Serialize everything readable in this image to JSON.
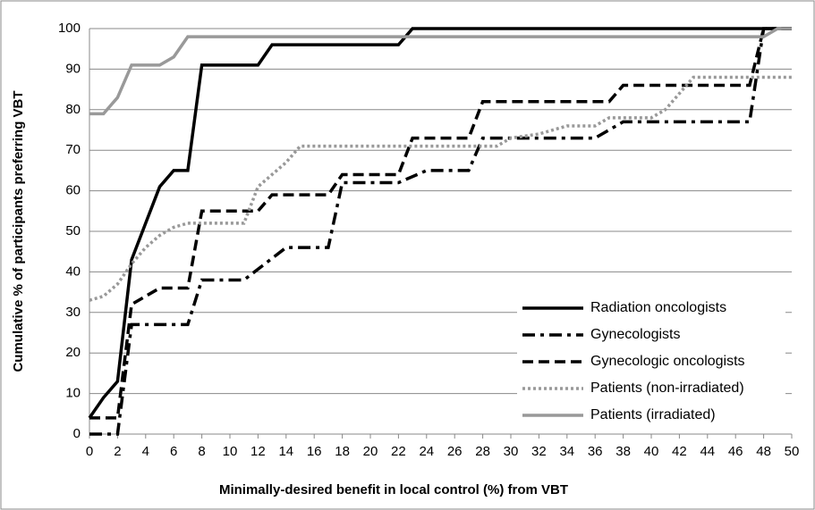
{
  "chart_data": {
    "type": "line",
    "x_label": "Minimally-desired benefit in local control (%) from VBT",
    "y_label": "Cumulative % of participants preferring VBT",
    "xlim": [
      0,
      50
    ],
    "ylim": [
      0,
      100
    ],
    "xticks": [
      0,
      2,
      4,
      6,
      8,
      10,
      12,
      14,
      16,
      18,
      20,
      22,
      24,
      26,
      28,
      30,
      32,
      34,
      36,
      38,
      40,
      42,
      44,
      46,
      48,
      50
    ],
    "yticks": [
      0,
      10,
      20,
      30,
      40,
      50,
      60,
      70,
      80,
      90,
      100
    ],
    "grid": true,
    "legend": "lower right",
    "series": [
      {
        "name": "Radiation oncologists",
        "color": "#000000",
        "dash": "solid",
        "x": [
          0,
          1,
          2,
          3,
          4,
          5,
          6,
          7,
          8,
          12,
          13,
          22,
          23,
          50
        ],
        "values": [
          4,
          9,
          13,
          43,
          52,
          61,
          65,
          65,
          91,
          91,
          96,
          96,
          100,
          100
        ]
      },
      {
        "name": "Gynecologists",
        "color": "#000000",
        "dash": "dash-dot",
        "x": [
          0,
          2,
          3,
          7,
          8,
          11,
          14,
          17,
          18,
          22,
          24,
          27,
          28,
          36,
          38,
          47,
          48,
          50
        ],
        "values": [
          0,
          0,
          27,
          27,
          38,
          38,
          46,
          46,
          62,
          62,
          65,
          65,
          73,
          73,
          77,
          77,
          100,
          100
        ]
      },
      {
        "name": "Gynecologic oncologists",
        "color": "#000000",
        "dash": "dashed",
        "x": [
          0,
          2,
          3,
          5,
          7,
          8,
          12,
          13,
          17,
          18,
          22,
          23,
          27,
          28,
          37,
          38,
          47,
          48,
          50
        ],
        "values": [
          4,
          4,
          32,
          36,
          36,
          55,
          55,
          59,
          59,
          64,
          64,
          73,
          73,
          82,
          82,
          86,
          86,
          100,
          100
        ]
      },
      {
        "name": "Patients (non-irradiated)",
        "color": "#999999",
        "dash": "dotted",
        "x": [
          0,
          1,
          2,
          3,
          4,
          5,
          6,
          7,
          11,
          12,
          14,
          15,
          29,
          30,
          32,
          34,
          36,
          37,
          40,
          41,
          43,
          50
        ],
        "values": [
          33,
          34,
          37,
          42,
          46,
          49,
          51,
          52,
          52,
          61,
          67,
          71,
          71,
          73,
          74,
          76,
          76,
          78,
          78,
          80,
          88,
          88
        ]
      },
      {
        "name": "Patients (irradiated)",
        "color": "#999999",
        "dash": "solid",
        "x": [
          0,
          1,
          2,
          3,
          5,
          6,
          7,
          48,
          49,
          50
        ],
        "values": [
          79,
          79,
          83,
          91,
          91,
          93,
          98,
          98,
          100,
          100
        ]
      }
    ]
  }
}
